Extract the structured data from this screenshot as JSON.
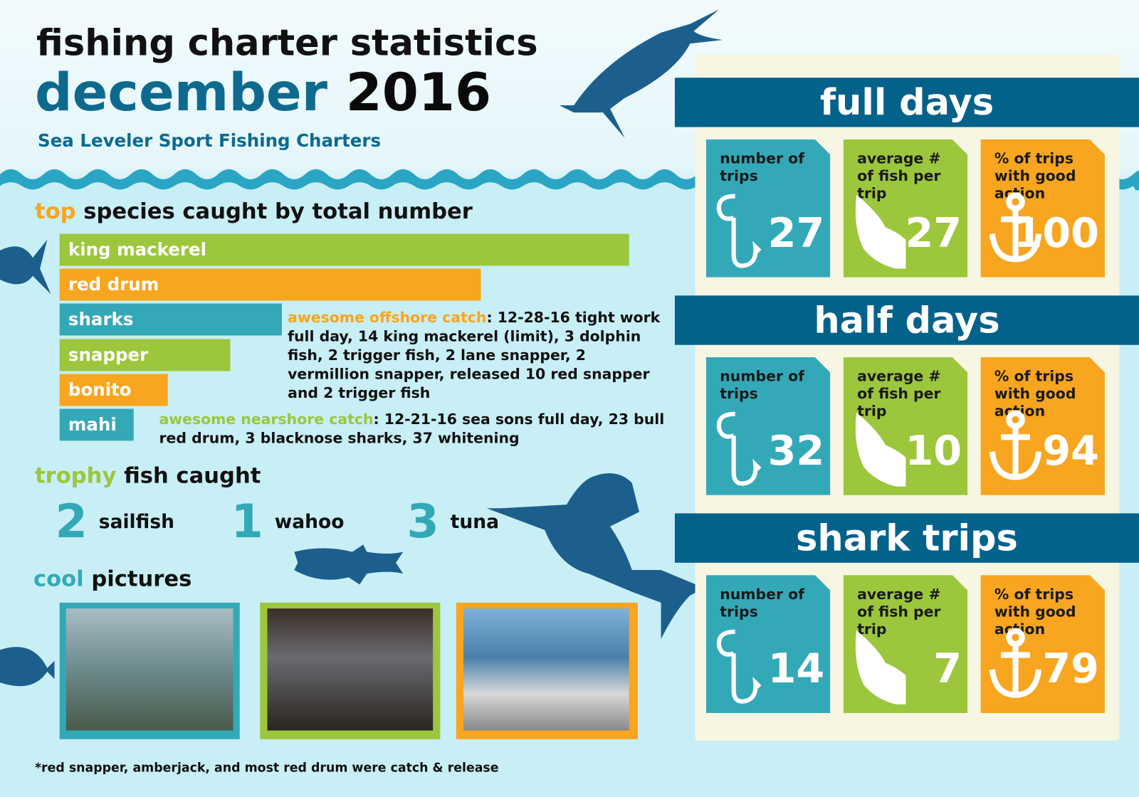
{
  "header": {
    "title": "fishing charter statistics",
    "month": "december",
    "year": "2016",
    "subtitle": "Sea Leveler Sport Fishing Charters"
  },
  "species": {
    "highlight": "top",
    "heading": "species caught by total number"
  },
  "chart_data": {
    "type": "bar",
    "categories": [
      "king mackerel",
      "red drum",
      "sharks",
      "snapper",
      "bonito",
      "mahi"
    ],
    "values": [
      100,
      74,
      39,
      30,
      19,
      13
    ],
    "xlim": [
      0,
      100
    ],
    "colors": [
      "#9cc63c",
      "#f8a51f",
      "#33a9b8",
      "#9cc63c",
      "#f8a51f",
      "#33a9b8"
    ]
  },
  "offshore": {
    "label": "awesome offshore catch",
    "text": ": 12-28-16 tight work full day, 14 king mackerel (limit), 3 dolphin fish, 2 trigger fish, 2 lane snapper, 2 vermillion snapper, released 10 red snapper and 2 trigger fish"
  },
  "nearshore": {
    "label": "awesome nearshore catch",
    "text": ": 12-21-16 sea sons full day, 23 bull red drum, 3 blacknose sharks, 37 whitening"
  },
  "trophy": {
    "highlight": "trophy",
    "heading": "fish caught",
    "items": [
      {
        "count": 2,
        "name": "sailfish"
      },
      {
        "count": 1,
        "name": "wahoo"
      },
      {
        "count": 3,
        "name": "tuna"
      }
    ]
  },
  "pictures": {
    "highlight": "cool",
    "heading": "pictures"
  },
  "footnote": "*red snapper, amberjack, and most red drum were catch & release",
  "panels": [
    {
      "title": "full days",
      "stats": [
        {
          "label": "number of trips",
          "value": 27
        },
        {
          "label": "average # of fish per trip",
          "value": 27
        },
        {
          "label": "% of trips with good action",
          "value": 100
        }
      ]
    },
    {
      "title": "half days",
      "stats": [
        {
          "label": "number of trips",
          "value": 32
        },
        {
          "label": "average # of fish per trip",
          "value": 10
        },
        {
          "label": "% of trips with good action",
          "value": 94
        }
      ]
    },
    {
      "title": "shark trips",
      "stats": [
        {
          "label": "number of trips",
          "value": 14
        },
        {
          "label": "average # of fish per trip",
          "value": 7
        },
        {
          "label": "% of trips with good action",
          "value": 79
        }
      ]
    }
  ]
}
